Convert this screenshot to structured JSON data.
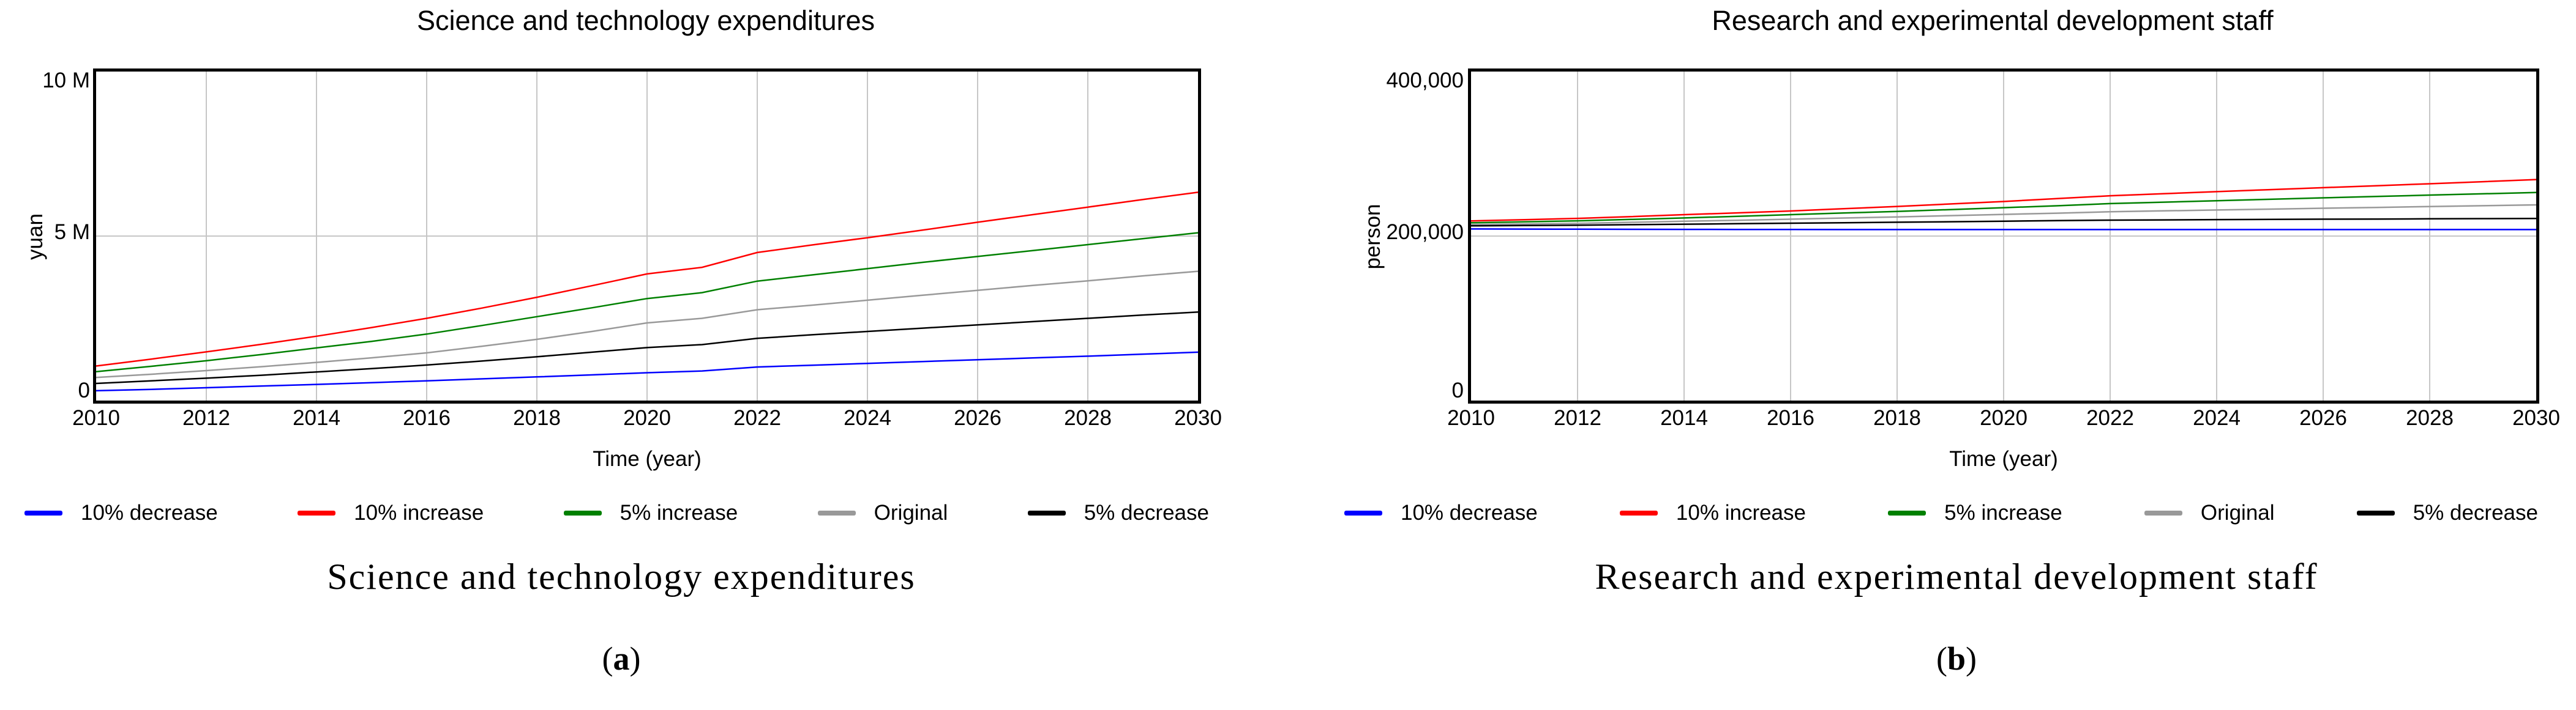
{
  "figure": {
    "panels": [
      {
        "title": "Science and technology expenditures",
        "y_unit": "yuan",
        "y_ticks": [
          {
            "label": "10 M",
            "value": 10000000
          },
          {
            "label": "5 M",
            "value": 5000000
          },
          {
            "label": "0",
            "value": 0
          }
        ],
        "x_label": "Time (year)",
        "x_ticks": [
          "2010",
          "2012",
          "2014",
          "2016",
          "2018",
          "2020",
          "2022",
          "2024",
          "2026",
          "2028",
          "2030"
        ],
        "caption": "Science and technology expenditures",
        "letter": {
          "open": "(",
          "char": "a",
          "close": ")"
        }
      },
      {
        "title": "Research and experimental development staff",
        "y_unit": "person",
        "y_ticks": [
          {
            "label": "400,000",
            "value": 400000
          },
          {
            "label": "200,000",
            "value": 200000
          },
          {
            "label": "0",
            "value": 0
          }
        ],
        "x_label": "Time (year)",
        "x_ticks": [
          "2010",
          "2012",
          "2014",
          "2016",
          "2018",
          "2020",
          "2022",
          "2024",
          "2026",
          "2028",
          "2030"
        ],
        "caption": "Research and experimental development staff",
        "letter": {
          "open": "(",
          "char": "b",
          "close": ")"
        }
      }
    ],
    "legend": [
      {
        "label": "10% decrease",
        "color": "#0000ff"
      },
      {
        "label": "10% increase",
        "color": "#ff0000"
      },
      {
        "label": "5% increase",
        "color": "#008000"
      },
      {
        "label": "Original",
        "color": "#999999"
      },
      {
        "label": "5% decrease",
        "color": "#000000"
      }
    ],
    "colors": {
      "gridline": "#c6c6c6",
      "axis_box": "#000000",
      "background": "#ffffff"
    }
  },
  "chart_data": [
    {
      "type": "line",
      "title": "Science and technology expenditures",
      "xlabel": "Time (year)",
      "ylabel": "yuan",
      "xlim": [
        2010,
        2030
      ],
      "ylim": [
        0,
        10000000
      ],
      "yticks": [
        0,
        5000000,
        10000000
      ],
      "xticks": [
        2010,
        2012,
        2014,
        2016,
        2018,
        2020,
        2022,
        2024,
        2026,
        2028,
        2030
      ],
      "grid": "vertical at 2-year ticks, horizontal at 5 M",
      "legend_position": "bottom",
      "x": [
        2010,
        2011,
        2012,
        2013,
        2014,
        2015,
        2016,
        2017,
        2018,
        2019,
        2020,
        2021,
        2022,
        2023,
        2024,
        2025,
        2026,
        2027,
        2028,
        2029,
        2030
      ],
      "series": [
        {
          "name": "10% decrease",
          "color": "#0000ff",
          "values": [
            300000,
            340000,
            390000,
            440000,
            490000,
            545000,
            600000,
            660000,
            720000,
            780000,
            845000,
            900000,
            1020000,
            1075000,
            1130000,
            1185000,
            1240000,
            1295000,
            1350000,
            1410000,
            1470000
          ]
        },
        {
          "name": "10% increase",
          "color": "#ff0000",
          "values": [
            1050000,
            1260000,
            1480000,
            1710000,
            1955000,
            2220000,
            2500000,
            2810000,
            3140000,
            3490000,
            3850000,
            4050000,
            4500000,
            4730000,
            4950000,
            5180000,
            5420000,
            5650000,
            5880000,
            6110000,
            6330000
          ]
        },
        {
          "name": "5% increase",
          "color": "#008000",
          "values": [
            880000,
            1040000,
            1210000,
            1400000,
            1600000,
            1800000,
            2020000,
            2280000,
            2550000,
            2820000,
            3100000,
            3280000,
            3630000,
            3820000,
            4010000,
            4200000,
            4380000,
            4560000,
            4740000,
            4920000,
            5100000
          ]
        },
        {
          "name": "Original",
          "color": "#999999",
          "values": [
            700000,
            800000,
            910000,
            1030000,
            1160000,
            1300000,
            1450000,
            1650000,
            1860000,
            2100000,
            2360000,
            2500000,
            2760000,
            2900000,
            3050000,
            3200000,
            3350000,
            3500000,
            3640000,
            3790000,
            3930000
          ]
        },
        {
          "name": "5% decrease",
          "color": "#000000",
          "values": [
            520000,
            600000,
            680000,
            770000,
            870000,
            970000,
            1080000,
            1200000,
            1330000,
            1470000,
            1610000,
            1700000,
            1890000,
            2000000,
            2100000,
            2200000,
            2300000,
            2400000,
            2500000,
            2600000,
            2690000
          ]
        }
      ]
    },
    {
      "type": "line",
      "title": "Research and experimental development staff",
      "xlabel": "Time (year)",
      "ylabel": "person",
      "xlim": [
        2010,
        2030
      ],
      "ylim": [
        0,
        400000
      ],
      "yticks": [
        0,
        200000,
        400000
      ],
      "xticks": [
        2010,
        2012,
        2014,
        2016,
        2018,
        2020,
        2022,
        2024,
        2026,
        2028,
        2030
      ],
      "grid": "vertical at 2-year ticks, horizontal at 200,000",
      "legend_position": "bottom",
      "x": [
        2010,
        2011,
        2012,
        2013,
        2014,
        2015,
        2016,
        2017,
        2018,
        2019,
        2020,
        2021,
        2022,
        2023,
        2024,
        2025,
        2026,
        2027,
        2028,
        2029,
        2030
      ],
      "series": [
        {
          "name": "10% decrease",
          "color": "#0000ff",
          "values": [
            208600,
            208500,
            208300,
            208200,
            208100,
            208000,
            208000,
            207900,
            207900,
            207900,
            207900,
            207900,
            207900,
            207900,
            207900,
            207900,
            207900,
            207900,
            207900,
            207900,
            207900
          ]
        },
        {
          "name": "10% increase",
          "color": "#ff0000",
          "values": [
            218400,
            219900,
            221500,
            223600,
            226000,
            228200,
            230500,
            233200,
            236000,
            239000,
            242000,
            245500,
            249000,
            251500,
            254000,
            256400,
            258800,
            261200,
            263600,
            266100,
            268700
          ]
        },
        {
          "name": "5% increase",
          "color": "#008000",
          "values": [
            216100,
            217300,
            218500,
            220200,
            222000,
            224000,
            226000,
            228000,
            230000,
            232200,
            234500,
            236800,
            239500,
            241200,
            243000,
            244700,
            246500,
            248100,
            249800,
            251400,
            253000
          ]
        },
        {
          "name": "Original",
          "color": "#999999",
          "values": [
            213900,
            214700,
            215500,
            216700,
            218000,
            219200,
            220500,
            221900,
            223300,
            224800,
            226300,
            227800,
            229500,
            230600,
            231700,
            232700,
            233800,
            234800,
            235900,
            236900,
            237900
          ]
        },
        {
          "name": "5% decrease",
          "color": "#000000",
          "values": [
            212400,
            212800,
            213200,
            213800,
            214400,
            215000,
            215600,
            216200,
            216800,
            217400,
            218100,
            218700,
            219300,
            219600,
            220000,
            220200,
            220500,
            220700,
            221000,
            221200,
            221400
          ]
        }
      ]
    }
  ]
}
